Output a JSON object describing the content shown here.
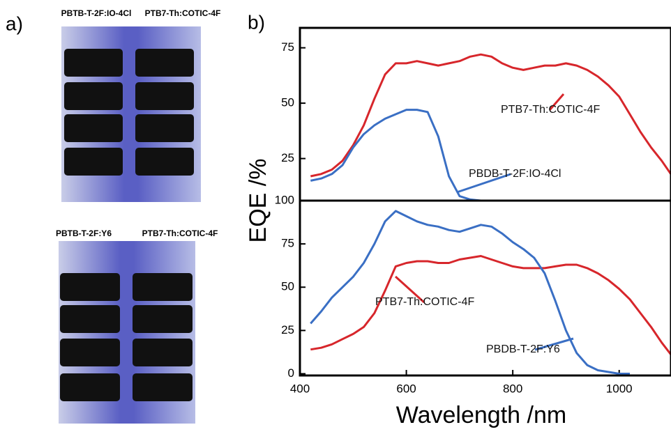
{
  "panel_a": {
    "label": "a)",
    "photos": [
      {
        "labels": [
          "PBTB-T-2F:IO-4Cl",
          "PTB7-Th:COTIC-4F"
        ]
      },
      {
        "labels": [
          "PBTB-T-2F:Y6",
          "PTB7-Th:COTIC-4F"
        ]
      }
    ]
  },
  "panel_b_label": "b)",
  "chart_data": [
    {
      "type": "line",
      "ylabel": "EQE /%",
      "x": [
        420,
        440,
        460,
        480,
        500,
        520,
        540,
        560,
        580,
        600,
        620,
        640,
        660,
        680,
        700,
        720,
        740,
        760,
        780,
        800,
        820,
        840,
        860,
        880,
        900,
        920,
        940,
        960,
        980,
        1000,
        1020,
        1040,
        1060,
        1080,
        1100
      ],
      "series": [
        {
          "name": "PTB7-Th:COTIC-4F",
          "color": "#d7262b",
          "values": [
            17,
            18,
            20,
            24,
            31,
            40,
            52,
            63,
            68,
            68,
            69,
            68,
            67,
            68,
            69,
            71,
            72,
            71,
            68,
            66,
            65,
            66,
            67,
            67,
            68,
            67,
            65,
            62,
            58,
            53,
            45,
            37,
            30,
            24,
            17
          ]
        },
        {
          "name": "PBDB-T-2F:IO-4Cl",
          "color": "#3a6fc4",
          "values": [
            15,
            16,
            18,
            22,
            30,
            36,
            40,
            43,
            45,
            47,
            47,
            46,
            35,
            17,
            8,
            6.5,
            6,
            6,
            null,
            null,
            null,
            null,
            null,
            null,
            null,
            null,
            null,
            null,
            null,
            null,
            null,
            null,
            null,
            null,
            null
          ]
        }
      ],
      "xlim": [
        400,
        1100
      ],
      "ylim": [
        6,
        84
      ],
      "yticks": [
        25,
        50,
        75
      ]
    },
    {
      "type": "line",
      "xlabel": "Wavelength /nm",
      "x": [
        420,
        440,
        460,
        480,
        500,
        520,
        540,
        560,
        580,
        600,
        620,
        640,
        660,
        680,
        700,
        720,
        740,
        760,
        780,
        800,
        820,
        840,
        860,
        880,
        900,
        920,
        940,
        960,
        980,
        1000,
        1020,
        1040,
        1060,
        1080,
        1100
      ],
      "series": [
        {
          "name": "PTB7-Th:COTIC-4F",
          "color": "#d7262b",
          "values": [
            14,
            15,
            17,
            20,
            23,
            27,
            35,
            48,
            62,
            64,
            65,
            65,
            64,
            64,
            66,
            67,
            68,
            66,
            64,
            62,
            61,
            61,
            61,
            62,
            63,
            63,
            61,
            58,
            54,
            49,
            43,
            35,
            27,
            18,
            10
          ]
        },
        {
          "name": "PBDB-T-2F:Y6",
          "color": "#3a6fc4",
          "values": [
            29,
            36,
            44,
            50,
            56,
            64,
            75,
            88,
            94,
            91,
            88,
            86,
            85,
            83,
            82,
            84,
            86,
            85,
            81,
            76,
            72,
            67,
            58,
            42,
            25,
            12,
            5,
            2,
            1,
            0,
            0,
            null,
            null,
            null,
            null
          ]
        }
      ],
      "xlim": [
        400,
        1100
      ],
      "ylim": [
        -1,
        100
      ],
      "xticks": [
        400,
        600,
        800,
        1000
      ],
      "yticks": [
        0,
        25,
        50,
        75,
        100
      ]
    }
  ]
}
